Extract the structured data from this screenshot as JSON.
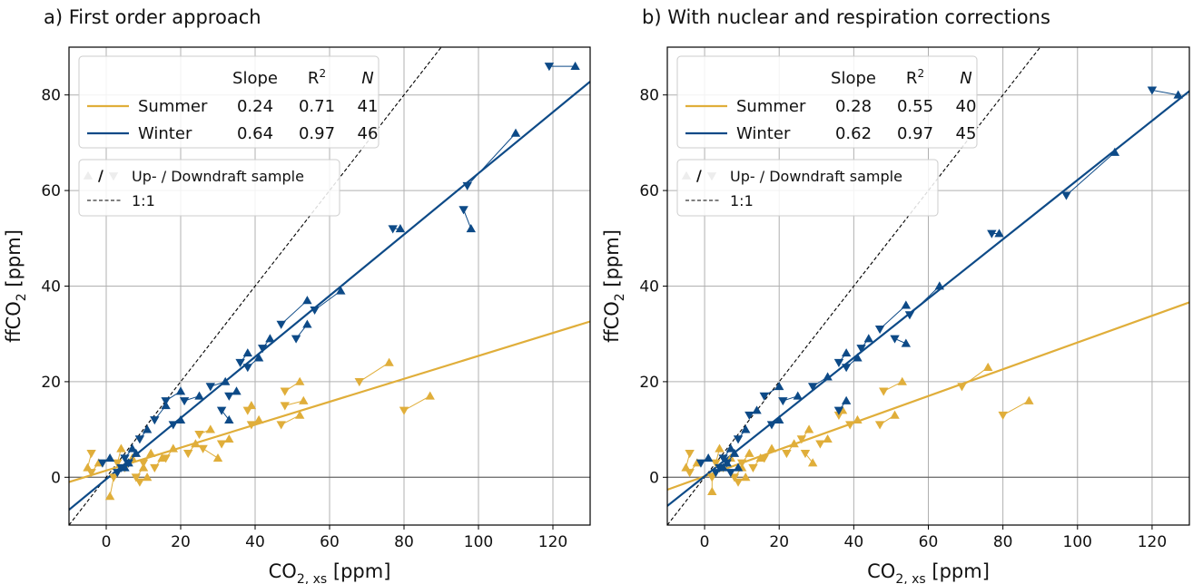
{
  "chart_data": [
    {
      "type": "scatter",
      "title": "a) First order approach",
      "xlabel": "CO2, xs [ppm]",
      "ylabel": "ffCO2 [ppm]",
      "xlim": [
        -10,
        130
      ],
      "ylim": [
        -10,
        90
      ],
      "xticks": [
        0,
        20,
        40,
        60,
        80,
        100,
        120
      ],
      "yticks": [
        0,
        20,
        40,
        60,
        80
      ],
      "grid": true,
      "legend_position": "top-left",
      "legend_headers": [
        "Slope",
        "R2",
        "N"
      ],
      "reference_line": {
        "label": "1:1",
        "slope": 1,
        "intercept": 0
      },
      "marker_legend": "Up- / Downdraft sample",
      "series": [
        {
          "name": "Summer",
          "color": "#E0AE3A",
          "slope": 0.24,
          "intercept": 1.4,
          "r2": 0.71,
          "n": 41,
          "samples": [
            {
              "up": [
                76,
                24
              ],
              "down": [
                68,
                20
              ]
            },
            {
              "up": [
                87,
                17
              ],
              "down": [
                80,
                14
              ]
            },
            {
              "up": [
                52,
                20
              ],
              "down": [
                48,
                18
              ]
            },
            {
              "up": [
                53,
                16
              ],
              "down": [
                48,
                15
              ]
            },
            {
              "up": [
                52,
                13
              ],
              "down": [
                47,
                11
              ]
            },
            {
              "up": [
                41,
                12
              ],
              "down": [
                39,
                11
              ]
            },
            {
              "up": [
                39,
                15
              ],
              "down": [
                38,
                14
              ]
            },
            {
              "up": [
                33,
                8
              ],
              "down": [
                31,
                7
              ]
            },
            {
              "up": [
                30,
                4
              ],
              "down": [
                26,
                6
              ]
            },
            {
              "up": [
                28,
                10
              ],
              "down": [
                25,
                9
              ]
            },
            {
              "up": [
                24,
                7
              ],
              "down": [
                22,
                5
              ]
            },
            {
              "up": [
                18,
                6
              ],
              "down": [
                16,
                4
              ]
            },
            {
              "up": [
                15,
                4
              ],
              "down": [
                13,
                2
              ]
            },
            {
              "up": [
                12,
                5
              ],
              "down": [
                10,
                3
              ]
            },
            {
              "up": [
                10,
                2
              ],
              "down": [
                8,
                0
              ]
            },
            {
              "up": [
                7,
                4
              ],
              "down": [
                5,
                2
              ]
            },
            {
              "up": [
                1,
                -4
              ],
              "down": [
                2,
                0
              ]
            },
            {
              "up": [
                -5,
                2
              ],
              "down": [
                -4,
                5
              ]
            },
            {
              "up": [
                4,
                6
              ],
              "down": [
                3,
                3
              ]
            },
            {
              "up": [
                11,
                0
              ],
              "down": [
                9,
                -1
              ]
            },
            {
              "up": [
                -2,
                3
              ],
              "down": [
                -4,
                1
              ]
            }
          ]
        },
        {
          "name": "Winter",
          "color": "#0D4A87",
          "slope": 0.64,
          "intercept": -0.4,
          "r2": 0.97,
          "n": 46,
          "samples": [
            {
              "up": [
                126,
                86
              ],
              "down": [
                119,
                86
              ]
            },
            {
              "up": [
                110,
                72
              ],
              "down": [
                97,
                61
              ]
            },
            {
              "up": [
                98,
                52
              ],
              "down": [
                96,
                56
              ]
            },
            {
              "up": [
                79,
                52
              ],
              "down": [
                77,
                52
              ]
            },
            {
              "up": [
                63,
                39
              ],
              "down": [
                56,
                35
              ]
            },
            {
              "up": [
                54,
                37
              ],
              "down": [
                47,
                32
              ]
            },
            {
              "up": [
                54,
                32
              ],
              "down": [
                51,
                29
              ]
            },
            {
              "up": [
                44,
                29
              ],
              "down": [
                42,
                27
              ]
            },
            {
              "up": [
                41,
                25
              ],
              "down": [
                38,
                23
              ]
            },
            {
              "up": [
                38,
                26
              ],
              "down": [
                36,
                24
              ]
            },
            {
              "up": [
                35,
                18
              ],
              "down": [
                33,
                17
              ]
            },
            {
              "up": [
                32,
                20
              ],
              "down": [
                28,
                19
              ]
            },
            {
              "up": [
                33,
                12
              ],
              "down": [
                31,
                14
              ]
            },
            {
              "up": [
                25,
                17
              ],
              "down": [
                21,
                16
              ]
            },
            {
              "up": [
                20,
                18
              ],
              "down": [
                16,
                16
              ]
            },
            {
              "up": [
                16,
                15
              ],
              "down": [
                13,
                12
              ]
            },
            {
              "up": [
                20,
                12
              ],
              "down": [
                18,
                11
              ]
            },
            {
              "up": [
                11,
                10
              ],
              "down": [
                9,
                8
              ]
            },
            {
              "up": [
                8,
                5
              ],
              "down": [
                6,
                3
              ]
            },
            {
              "up": [
                6,
                3
              ],
              "down": [
                4,
                2
              ]
            },
            {
              "up": [
                5,
                2
              ],
              "down": [
                3,
                1
              ]
            },
            {
              "up": [
                7,
                6
              ],
              "down": [
                5,
                4
              ]
            },
            {
              "up": [
                1,
                4
              ],
              "down": [
                -1,
                3
              ]
            }
          ]
        }
      ]
    },
    {
      "type": "scatter",
      "title": "b) With nuclear and respiration corrections",
      "xlabel": "CO2, xs [ppm]",
      "ylabel": "ffCO2 [ppm]",
      "xlim": [
        -10,
        130
      ],
      "ylim": [
        -10,
        90
      ],
      "xticks": [
        0,
        20,
        40,
        60,
        80,
        100,
        120
      ],
      "yticks": [
        0,
        20,
        40,
        60,
        80
      ],
      "grid": true,
      "legend_position": "top-left",
      "legend_headers": [
        "Slope",
        "R2",
        "N"
      ],
      "reference_line": {
        "label": "1:1",
        "slope": 1,
        "intercept": 0
      },
      "marker_legend": "Up- / Downdraft sample",
      "series": [
        {
          "name": "Summer",
          "color": "#E0AE3A",
          "slope": 0.28,
          "intercept": 0.2,
          "r2": 0.55,
          "n": 40,
          "samples": [
            {
              "up": [
                76,
                23
              ],
              "down": [
                69,
                19
              ]
            },
            {
              "up": [
                87,
                16
              ],
              "down": [
                80,
                13
              ]
            },
            {
              "up": [
                53,
                20
              ],
              "down": [
                48,
                18
              ]
            },
            {
              "up": [
                51,
                13
              ],
              "down": [
                47,
                11
              ]
            },
            {
              "up": [
                41,
                12
              ],
              "down": [
                39,
                11
              ]
            },
            {
              "up": [
                37,
                14
              ],
              "down": [
                36,
                13
              ]
            },
            {
              "up": [
                33,
                8
              ],
              "down": [
                31,
                7
              ]
            },
            {
              "up": [
                28,
                10
              ],
              "down": [
                26,
                8
              ]
            },
            {
              "up": [
                24,
                7
              ],
              "down": [
                22,
                5
              ]
            },
            {
              "up": [
                18,
                6
              ],
              "down": [
                16,
                4
              ]
            },
            {
              "up": [
                15,
                4
              ],
              "down": [
                13,
                2
              ]
            },
            {
              "up": [
                12,
                5
              ],
              "down": [
                10,
                3
              ]
            },
            {
              "up": [
                10,
                2
              ],
              "down": [
                8,
                0
              ]
            },
            {
              "up": [
                7,
                4
              ],
              "down": [
                5,
                2
              ]
            },
            {
              "up": [
                2,
                -3
              ],
              "down": [
                2,
                0
              ]
            },
            {
              "up": [
                -5,
                2
              ],
              "down": [
                -4,
                5
              ]
            },
            {
              "up": [
                4,
                6
              ],
              "down": [
                3,
                3
              ]
            },
            {
              "up": [
                11,
                0
              ],
              "down": [
                9,
                -1
              ]
            },
            {
              "up": [
                -2,
                3
              ],
              "down": [
                -4,
                1
              ]
            },
            {
              "up": [
                29,
                3
              ],
              "down": [
                27,
                5
              ]
            }
          ]
        },
        {
          "name": "Winter",
          "color": "#0D4A87",
          "slope": 0.62,
          "intercept": 0.2,
          "r2": 0.97,
          "n": 45,
          "samples": [
            {
              "up": [
                127,
                80
              ],
              "down": [
                120,
                81
              ]
            },
            {
              "up": [
                110,
                68
              ],
              "down": [
                97,
                59
              ]
            },
            {
              "up": [
                79,
                51
              ],
              "down": [
                77,
                51
              ]
            },
            {
              "up": [
                63,
                40
              ],
              "down": [
                55,
                34
              ]
            },
            {
              "up": [
                54,
                36
              ],
              "down": [
                47,
                31
              ]
            },
            {
              "up": [
                54,
                28
              ],
              "down": [
                51,
                29
              ]
            },
            {
              "up": [
                44,
                29
              ],
              "down": [
                42,
                27
              ]
            },
            {
              "up": [
                41,
                25
              ],
              "down": [
                38,
                23
              ]
            },
            {
              "up": [
                38,
                26
              ],
              "down": [
                36,
                24
              ]
            },
            {
              "up": [
                38,
                16
              ],
              "down": [
                36,
                14
              ]
            },
            {
              "up": [
                33,
                21
              ],
              "down": [
                29,
                19
              ]
            },
            {
              "up": [
                25,
                17
              ],
              "down": [
                21,
                16
              ]
            },
            {
              "up": [
                20,
                19
              ],
              "down": [
                16,
                17
              ]
            },
            {
              "up": [
                14,
                14
              ],
              "down": [
                12,
                13
              ]
            },
            {
              "up": [
                20,
                12
              ],
              "down": [
                18,
                11
              ]
            },
            {
              "up": [
                11,
                10
              ],
              "down": [
                9,
                8
              ]
            },
            {
              "up": [
                8,
                5
              ],
              "down": [
                6,
                3
              ]
            },
            {
              "up": [
                6,
                3
              ],
              "down": [
                4,
                2
              ]
            },
            {
              "up": [
                5,
                2
              ],
              "down": [
                3,
                1
              ]
            },
            {
              "up": [
                7,
                6
              ],
              "down": [
                5,
                4
              ]
            },
            {
              "up": [
                1,
                4
              ],
              "down": [
                -1,
                3
              ]
            },
            {
              "up": [
                9,
                2
              ],
              "down": [
                7,
                1
              ]
            }
          ]
        }
      ]
    }
  ]
}
